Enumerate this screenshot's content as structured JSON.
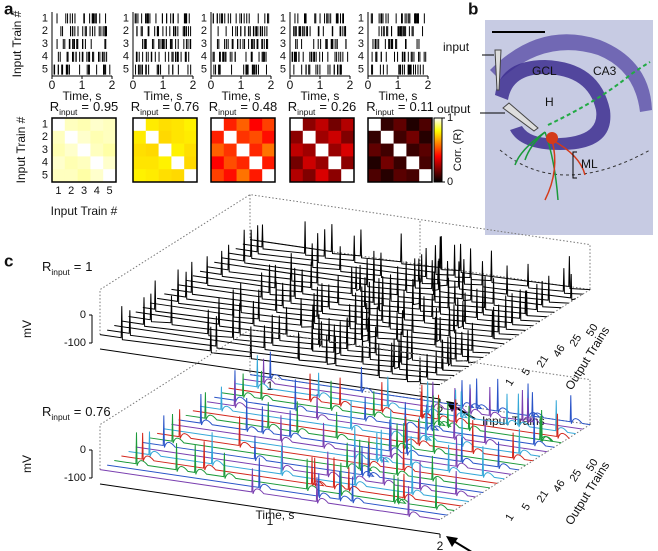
{
  "panel_a": {
    "label": "a",
    "rasters": {
      "y_label": "Input Train #",
      "x_label": "Time, s",
      "xlim": [
        0,
        2
      ],
      "xticks": [
        0,
        1,
        2
      ],
      "yticks": [
        1,
        2,
        3,
        4,
        5
      ]
    },
    "r_symbol": "R",
    "r_sub": "input",
    "equals": "=",
    "matrices": [
      {
        "r_value": 0.95,
        "values": [
          [
            1,
            0.95,
            0.94,
            0.96,
            0.95
          ],
          [
            0.95,
            1,
            0.96,
            0.94,
            0.95
          ],
          [
            0.94,
            0.96,
            1,
            0.95,
            0.93
          ],
          [
            0.96,
            0.94,
            0.95,
            1,
            0.96
          ],
          [
            0.95,
            0.95,
            0.93,
            0.96,
            1
          ]
        ]
      },
      {
        "r_value": 0.76,
        "values": [
          [
            1,
            0.77,
            0.75,
            0.76,
            0.78
          ],
          [
            0.77,
            1,
            0.74,
            0.76,
            0.77
          ],
          [
            0.75,
            0.74,
            1,
            0.78,
            0.75
          ],
          [
            0.76,
            0.76,
            0.78,
            1,
            0.74
          ],
          [
            0.78,
            0.77,
            0.75,
            0.74,
            1
          ]
        ]
      },
      {
        "r_value": 0.48,
        "values": [
          [
            1,
            0.45,
            0.55,
            0.4,
            0.5
          ],
          [
            0.45,
            1,
            0.48,
            0.52,
            0.42
          ],
          [
            0.55,
            0.48,
            1,
            0.46,
            0.58
          ],
          [
            0.4,
            0.52,
            0.46,
            1,
            0.44
          ],
          [
            0.5,
            0.42,
            0.58,
            0.44,
            1
          ]
        ]
      },
      {
        "r_value": 0.26,
        "values": [
          [
            1,
            0.22,
            0.3,
            0.18,
            0.28
          ],
          [
            0.22,
            1,
            0.25,
            0.32,
            0.2
          ],
          [
            0.3,
            0.25,
            1,
            0.24,
            0.34
          ],
          [
            0.18,
            0.32,
            0.24,
            1,
            0.22
          ],
          [
            0.28,
            0.2,
            0.34,
            0.22,
            1
          ]
        ]
      },
      {
        "r_value": 0.11,
        "values": [
          [
            1,
            0.08,
            0.15,
            0.05,
            0.12
          ],
          [
            0.08,
            1,
            0.1,
            0.18,
            0.06
          ],
          [
            0.15,
            0.1,
            1,
            0.09,
            0.14
          ],
          [
            0.05,
            0.18,
            0.09,
            1,
            0.11
          ],
          [
            0.12,
            0.06,
            0.14,
            0.11,
            1
          ]
        ]
      }
    ],
    "matrix_axis": {
      "label": "Input Train #",
      "ticks": [
        1,
        2,
        3,
        4,
        5
      ]
    },
    "colorbar": {
      "ticks": [
        1,
        0
      ],
      "label": "Corr. (R)"
    }
  },
  "panel_b": {
    "label": "b",
    "labels": [
      "input",
      "GCL",
      "CA3",
      "H",
      "output",
      "ML"
    ]
  },
  "panel_c": {
    "label": "c",
    "r_symbol": "R",
    "r_sub": "input",
    "equals": "=",
    "plots": [
      {
        "r_value": 1
      },
      {
        "r_value": 0.76,
        "x_label": "Time, s"
      }
    ],
    "y_label": "mV",
    "yticks": [
      0,
      -100
    ],
    "xlim": [
      0,
      2
    ],
    "xticks": [
      1,
      2
    ],
    "depth_label": "Output Trains",
    "depth_ticks": [
      1,
      5,
      21,
      46,
      25,
      50
    ],
    "arrow_label": "Input Trains"
  }
}
